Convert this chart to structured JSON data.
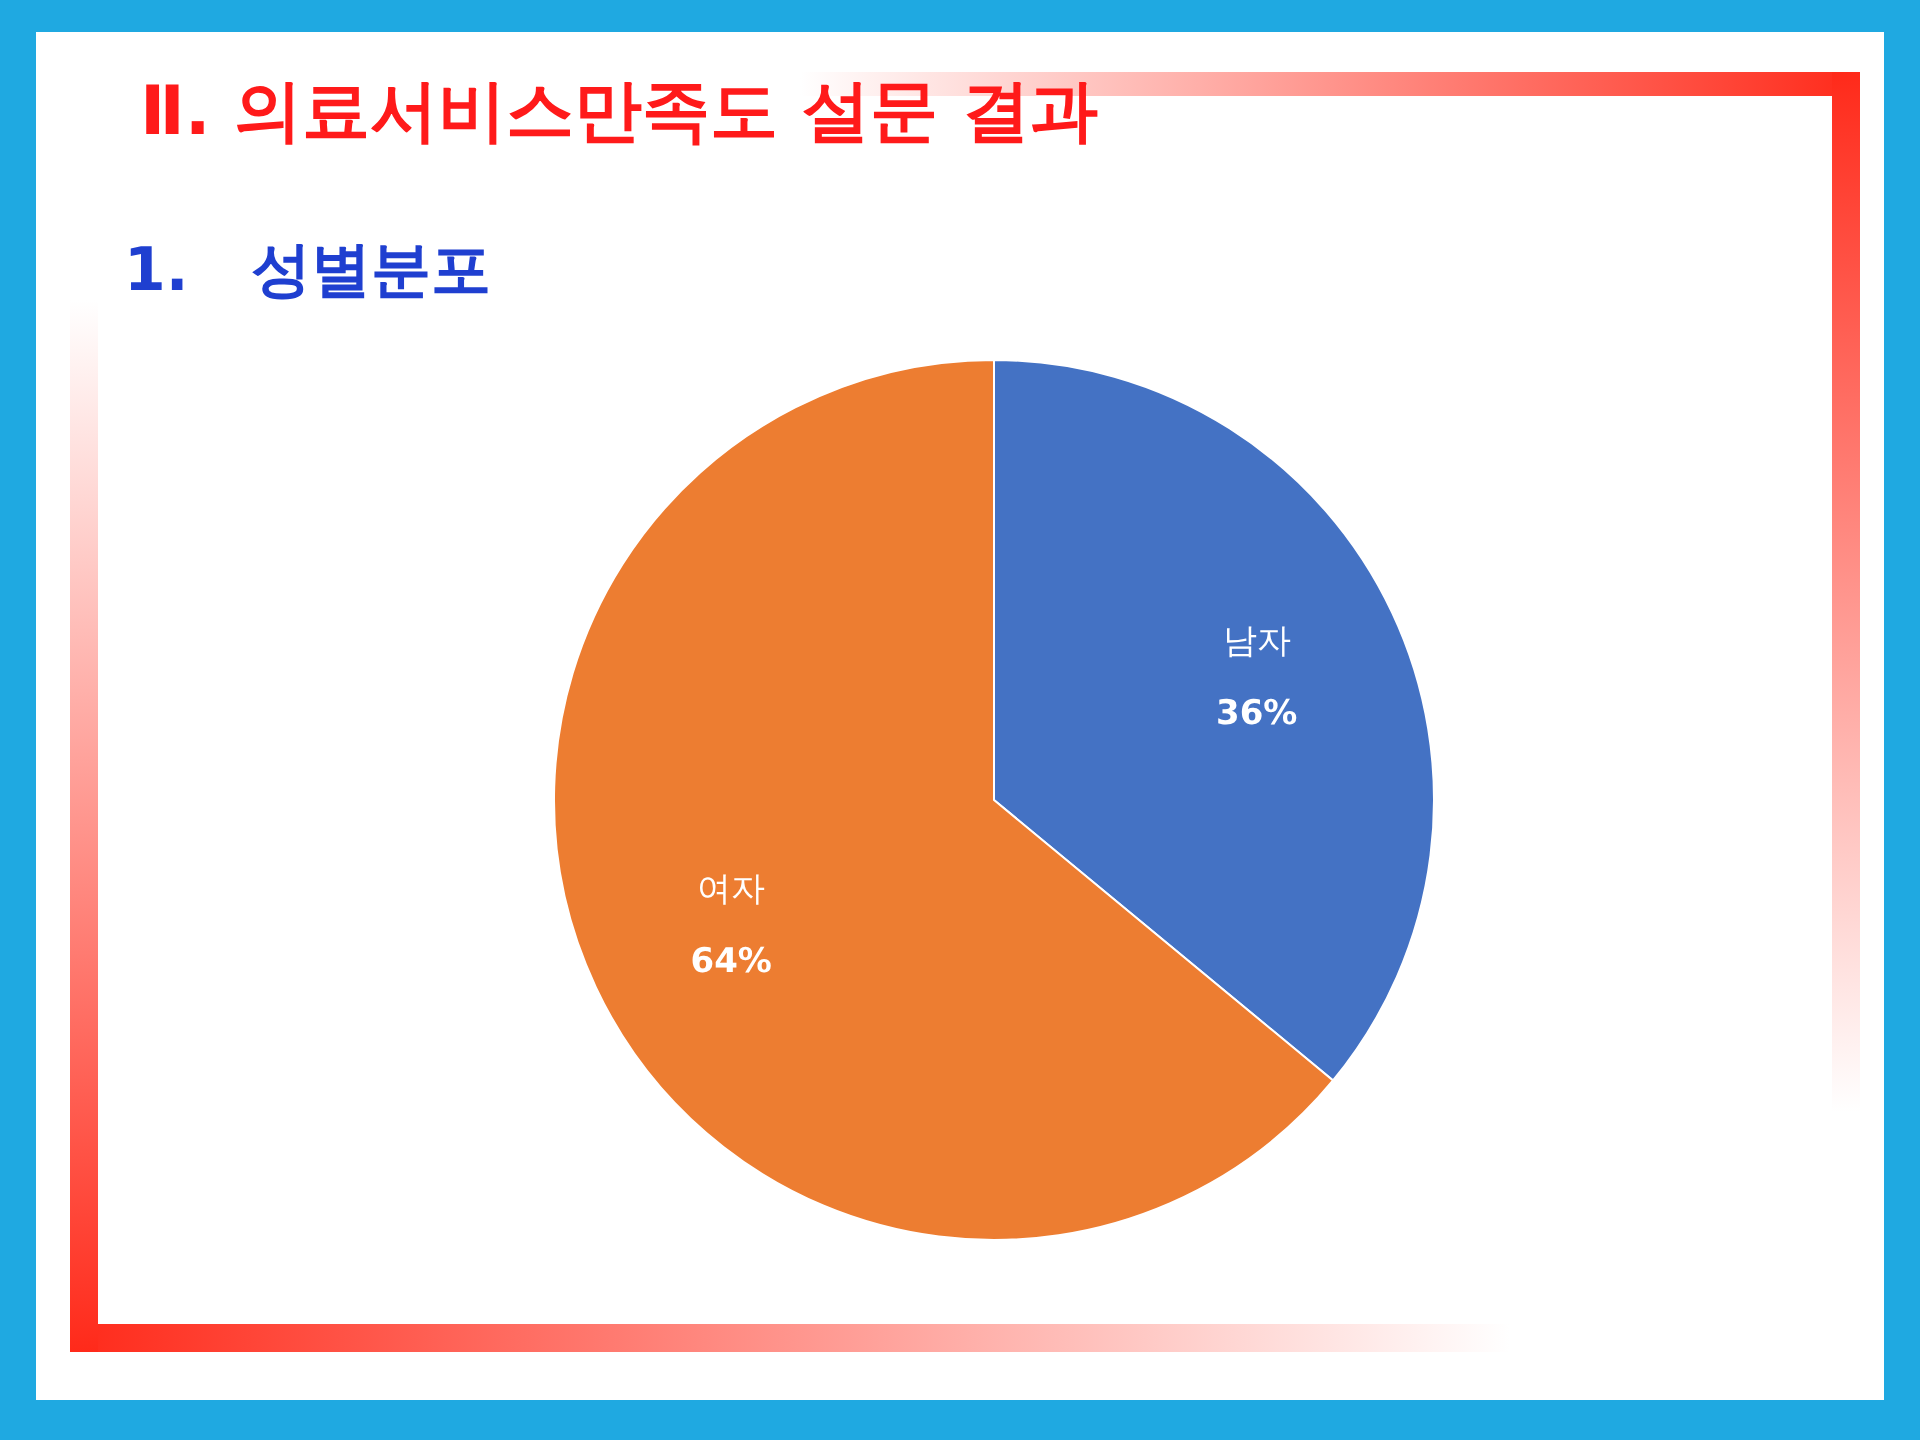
{
  "chart_data": {
    "type": "pie",
    "title": "Ⅱ. 의료서비스만족도 설문 결과",
    "subtitle": "1.   성별분포",
    "categories": [
      "남자",
      "여자"
    ],
    "values": [
      36,
      64
    ],
    "value_labels": [
      "36%",
      "64%"
    ],
    "colors": [
      "#4472c4",
      "#ed7d31"
    ]
  }
}
